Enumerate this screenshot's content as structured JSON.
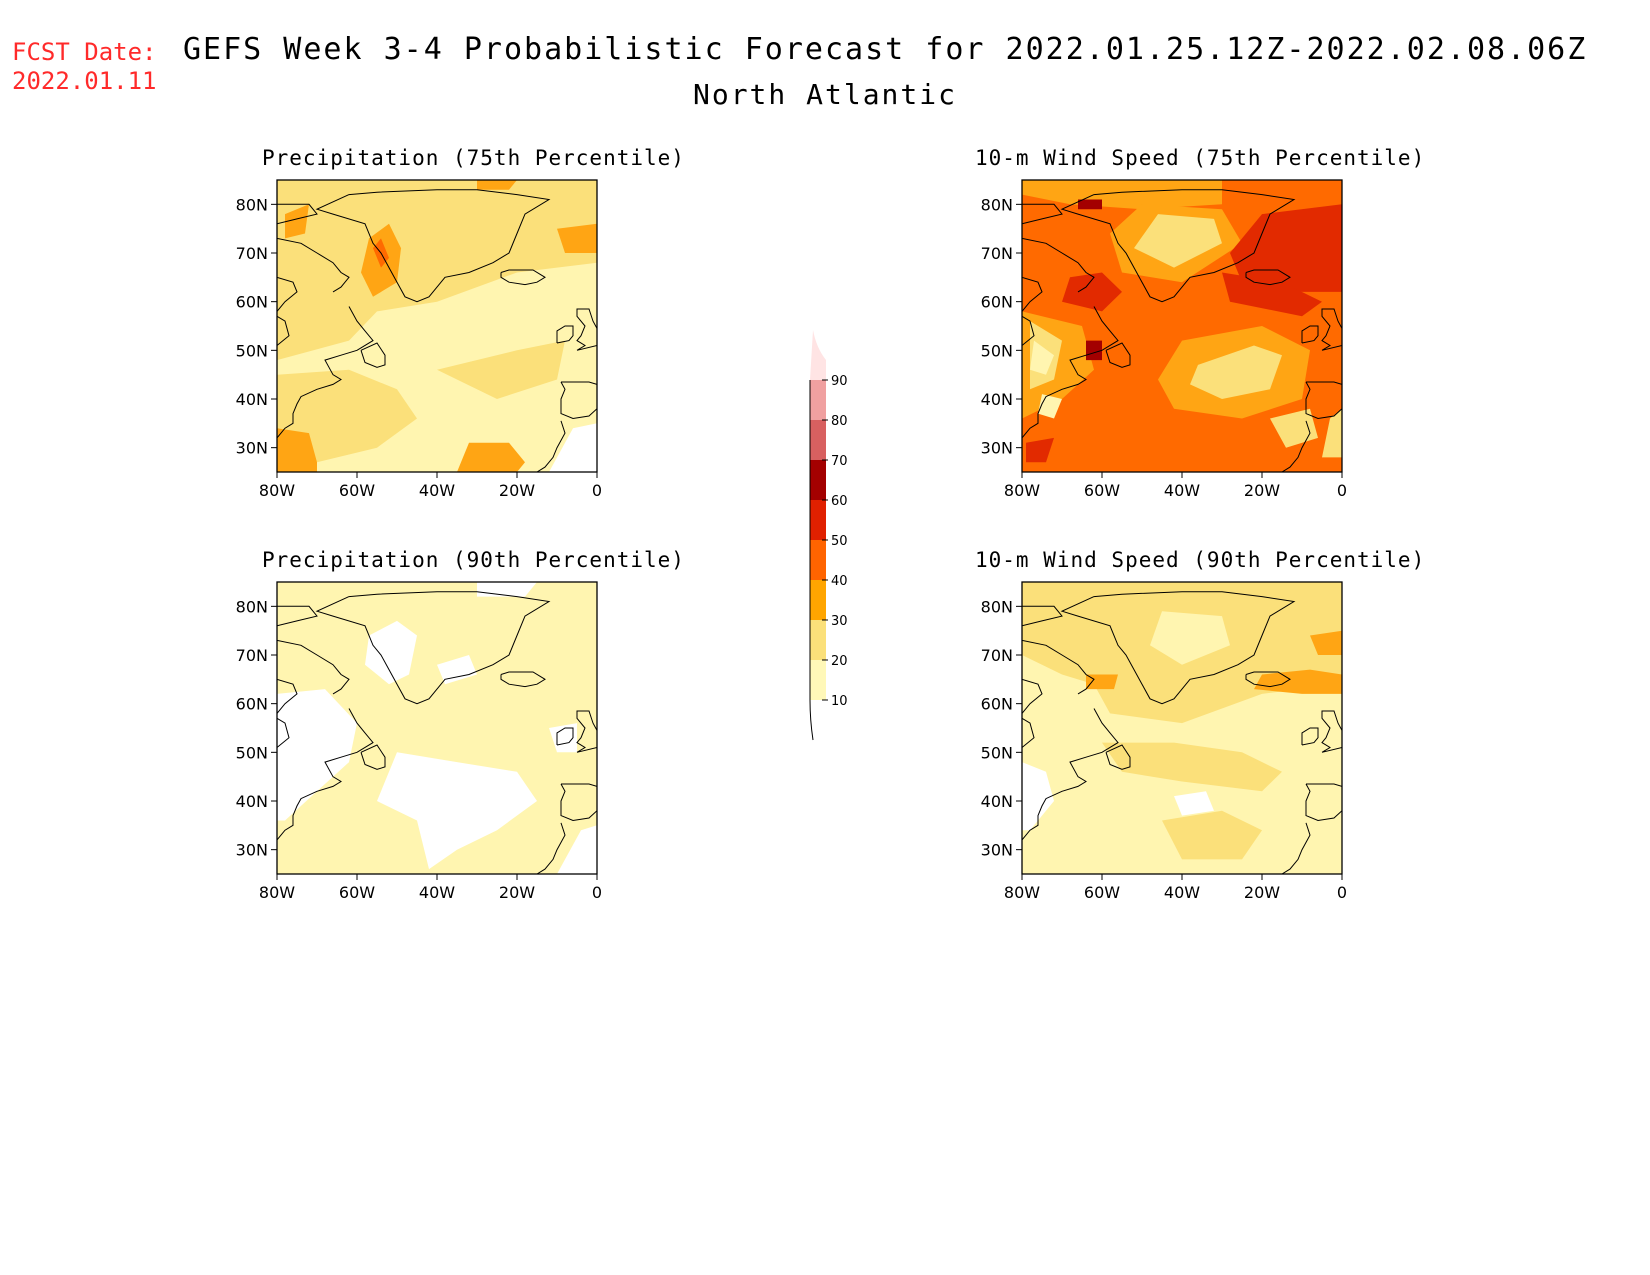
{
  "header": {
    "fcst_label": "FCST Date:",
    "fcst_date": "2022.01.11",
    "title": "GEFS Week 3-4 Probabilistic Forecast for 2022.01.25.12Z-2022.02.08.06Z",
    "region": "North Atlantic"
  },
  "panels": [
    {
      "id": "precip75",
      "title": "Precipitation (75th Percentile)",
      "level": "p75"
    },
    {
      "id": "wind75",
      "title": "10-m Wind Speed (75th Percentile)",
      "level": "w75"
    },
    {
      "id": "precip90",
      "title": "Precipitation (90th Percentile)",
      "level": "p90"
    },
    {
      "id": "wind90",
      "title": "10-m Wind Speed (90th Percentile)",
      "level": "w90"
    }
  ],
  "axes": {
    "lat_labels": [
      "30N",
      "40N",
      "50N",
      "60N",
      "70N",
      "80N"
    ],
    "lat_values": [
      30,
      40,
      50,
      60,
      70,
      80
    ],
    "lon_labels": [
      "80W",
      "60W",
      "40W",
      "20W",
      "0"
    ],
    "lon_values": [
      -80,
      -60,
      -40,
      -20,
      0
    ],
    "lat_range": [
      25,
      85
    ],
    "lon_range": [
      -80,
      0
    ]
  },
  "colorbar": {
    "labels": [
      "10",
      "20",
      "30",
      "40",
      "50",
      "60",
      "70",
      "80",
      "90"
    ],
    "colors": [
      "#fff8b8",
      "#fbe07a",
      "#ffa500",
      "#ff6400",
      "#e02000",
      "#a30000",
      "#d86060",
      "#f0a0a0",
      "#ffe4e4"
    ]
  },
  "palette": {
    "white": "#ffffff",
    "c10": "#fff5b0",
    "c20": "#fbe07a",
    "c30": "#ffa514",
    "c40": "#ff6a00",
    "c50": "#e22a00",
    "c60": "#a30000",
    "coast": "#000000",
    "fcst_red": "#ff2a2a"
  }
}
